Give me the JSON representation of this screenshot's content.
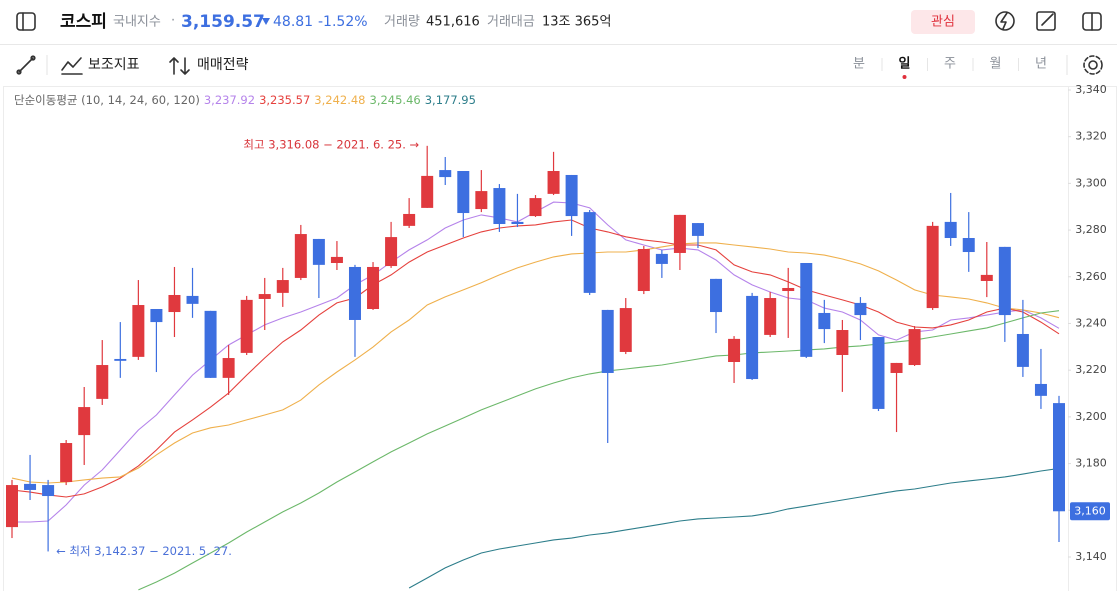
{
  "header": {
    "name": "코스피",
    "kind": "국내지수",
    "dot": "·",
    "price": "3,159.57",
    "change": "48.81",
    "change_pct": "-1.52%",
    "volume_label": "거래량",
    "volume": "451,616",
    "amount_label": "거래대금",
    "amount": "13조 365억",
    "watch": "관심"
  },
  "toolbar": {
    "indicators": "보조지표",
    "strategy": "매매전략",
    "periods": [
      "분",
      "일",
      "주",
      "월",
      "년"
    ],
    "selected_period": 1
  },
  "chart_data": {
    "type": "candlestick",
    "ma_label": "단순이동평균 (10, 14, 24, 60, 120)",
    "up_color": "#e0393e",
    "down_color": "#3d6fe0",
    "ylim": [
      3125,
      3345
    ],
    "yticks": [
      {
        "value": 3140,
        "label": "3,140"
      },
      {
        "value": 3160,
        "label": "3,160"
      },
      {
        "value": 3180,
        "label": "3,180"
      },
      {
        "value": 3200,
        "label": "3,200"
      },
      {
        "value": 3220,
        "label": "3,220"
      },
      {
        "value": 3240,
        "label": "3,240"
      },
      {
        "value": 3260,
        "label": "3,260"
      },
      {
        "value": 3280,
        "label": "3,280"
      },
      {
        "value": 3300,
        "label": "3,300"
      },
      {
        "value": 3320,
        "label": "3,320"
      },
      {
        "value": 3340,
        "label": "3,340"
      }
    ],
    "grid": false,
    "price_marker": {
      "value": 3159.57,
      "label": "3,160",
      "color": "#3d6fe0"
    },
    "annotations": [
      {
        "text": "최고 3,316.08 − 2021. 6. 25. →",
        "value": 3316.08,
        "index": 23,
        "color": "#d8353b",
        "side": "left"
      },
      {
        "text": "← 최저 3,142.37 − 2021. 5. 27.",
        "value": 3142.37,
        "index": 2,
        "color": "#4a70d8",
        "side": "right"
      }
    ],
    "open": [
      3152.8,
      3171.3,
      3170.8,
      3172.1,
      3192.2,
      3207.7,
      3224.8,
      3225.7,
      3246.2,
      3244.9,
      3251.8,
      3245.4,
      3216.7,
      3227.4,
      3250.5,
      3253.1,
      3259.5,
      3276.2,
      3265.9,
      3264.2,
      3246.2,
      3264.6,
      3281.8,
      3289.5,
      3305.7,
      3305.3,
      3289.0,
      3298.0,
      3283.5,
      3286.0,
      3295.5,
      3303.6,
      3287.7,
      3245.8,
      3227.8,
      3253.9,
      3269.8,
      3270.2,
      3283.0,
      3259.1,
      3223.5,
      3251.8,
      3235.1,
      3253.9,
      3265.9,
      3244.5,
      3226.5,
      3248.8,
      3234.2,
      3218.8,
      3222.2,
      3246.6,
      3283.5,
      3276.6,
      3258.2,
      3272.8,
      3235.5,
      3214.1,
      3205.9
    ],
    "high": [
      3173.0,
      3183.7,
      3173.0,
      3190.1,
      3212.8,
      3232.9,
      3240.6,
      3258.6,
      3246.2,
      3264.2,
      3263.8,
      3245.4,
      3230.8,
      3251.8,
      3259.5,
      3263.8,
      3282.2,
      3276.2,
      3275.3,
      3265.1,
      3266.3,
      3283.5,
      3293.7,
      3316.08,
      3311.3,
      3305.3,
      3305.7,
      3299.7,
      3295.5,
      3295.0,
      3313.5,
      3303.6,
      3288.6,
      3245.8,
      3250.9,
      3273.2,
      3271.5,
      3286.5,
      3283.0,
      3259.1,
      3234.6,
      3253.1,
      3253.5,
      3263.8,
      3265.9,
      3250.1,
      3241.5,
      3251.3,
      3234.2,
      3223.1,
      3238.9,
      3283.5,
      3295.9,
      3287.7,
      3274.9,
      3272.8,
      3250.1,
      3229.1,
      3209.0
    ],
    "low": [
      3148.1,
      3164.4,
      3142.37,
      3170.8,
      3179.4,
      3205.1,
      3216.7,
      3224.4,
      3219.2,
      3234.2,
      3242.4,
      3216.7,
      3209.4,
      3226.5,
      3237.2,
      3247.1,
      3258.6,
      3250.9,
      3262.9,
      3225.7,
      3245.8,
      3263.8,
      3280.9,
      3289.5,
      3299.3,
      3277.0,
      3287.7,
      3279.2,
      3281.3,
      3285.6,
      3295.0,
      3277.5,
      3252.2,
      3188.8,
      3226.9,
      3252.6,
      3259.5,
      3262.9,
      3272.3,
      3235.9,
      3214.5,
      3215.8,
      3234.2,
      3233.8,
      3225.2,
      3231.6,
      3210.7,
      3232.9,
      3202.5,
      3193.5,
      3221.8,
      3245.8,
      3273.2,
      3262.1,
      3251.3,
      3232.1,
      3217.1,
      3203.4,
      3146.4
    ],
    "close": [
      3170.8,
      3168.7,
      3166.1,
      3188.8,
      3204.2,
      3222.2,
      3224.0,
      3247.9,
      3240.6,
      3252.2,
      3248.4,
      3216.7,
      3225.2,
      3250.1,
      3252.6,
      3258.6,
      3278.3,
      3265.1,
      3268.5,
      3241.5,
      3264.2,
      3277.0,
      3286.9,
      3303.2,
      3302.7,
      3287.3,
      3296.7,
      3282.6,
      3282.6,
      3293.7,
      3305.3,
      3286.0,
      3253.1,
      3218.8,
      3246.6,
      3271.9,
      3265.5,
      3286.5,
      3277.5,
      3244.9,
      3233.4,
      3216.2,
      3250.9,
      3255.2,
      3225.7,
      3237.6,
      3237.2,
      3243.6,
      3203.4,
      3223.1,
      3237.6,
      3281.8,
      3276.6,
      3270.6,
      3260.8,
      3243.6,
      3221.4,
      3209.0,
      3159.57
    ],
    "series": [
      {
        "legend_label": "3,237.92",
        "color": "#b583ea",
        "values": [
          3155.0,
          3155.0,
          3155.4,
          3162.3,
          3170.8,
          3177.3,
          3185.8,
          3194.4,
          3200.8,
          3209.4,
          3217.9,
          3224.4,
          3230.8,
          3235.1,
          3239.4,
          3242.4,
          3244.9,
          3247.9,
          3250.9,
          3256.5,
          3260.8,
          3266.3,
          3271.5,
          3275.8,
          3280.9,
          3284.3,
          3286.5,
          3285.2,
          3283.5,
          3287.8,
          3292.0,
          3291.6,
          3289.5,
          3282.2,
          3275.8,
          3273.6,
          3271.5,
          3272.3,
          3271.5,
          3267.2,
          3260.8,
          3256.5,
          3253.5,
          3250.9,
          3250.1,
          3246.6,
          3244.9,
          3241.5,
          3235.1,
          3232.9,
          3236.4,
          3237.2,
          3241.5,
          3242.4,
          3243.6,
          3244.9,
          3245.8,
          3242.4,
          3237.92
        ]
      },
      {
        "legend_label": "3,235.57",
        "color": "#e5413d",
        "values": [
          3168.7,
          3167.8,
          3166.6,
          3165.7,
          3167.0,
          3170.0,
          3173.8,
          3179.0,
          3185.8,
          3193.5,
          3198.7,
          3204.2,
          3210.2,
          3217.9,
          3225.2,
          3232.1,
          3237.2,
          3243.6,
          3248.8,
          3250.9,
          3256.5,
          3260.8,
          3266.3,
          3270.6,
          3273.6,
          3276.6,
          3279.2,
          3280.9,
          3281.8,
          3282.2,
          3283.5,
          3284.3,
          3280.9,
          3279.2,
          3277.1,
          3275.8,
          3274.9,
          3273.6,
          3273.6,
          3271.5,
          3265.1,
          3262.1,
          3260.8,
          3257.8,
          3254.4,
          3252.2,
          3250.1,
          3247.9,
          3244.9,
          3240.6,
          3238.5,
          3238.1,
          3239.4,
          3241.5,
          3244.9,
          3246.6,
          3244.9,
          3240.6,
          3235.57
        ]
      },
      {
        "legend_label": "3,242.48",
        "color": "#efb04c",
        "values": [
          3173.8,
          3172.1,
          3171.7,
          3172.1,
          3173.0,
          3173.8,
          3174.3,
          3178.1,
          3183.7,
          3188.8,
          3193.1,
          3195.3,
          3196.5,
          3198.7,
          3200.8,
          3203.0,
          3207.2,
          3213.7,
          3219.2,
          3224.4,
          3229.9,
          3236.4,
          3241.5,
          3247.9,
          3251.4,
          3254.4,
          3257.4,
          3260.8,
          3263.8,
          3266.3,
          3268.5,
          3269.8,
          3270.2,
          3270.6,
          3270.6,
          3271.5,
          3272.8,
          3274.1,
          3274.5,
          3274.5,
          3273.6,
          3272.8,
          3271.9,
          3270.6,
          3270.2,
          3269.3,
          3267.6,
          3265.5,
          3262.5,
          3258.6,
          3254.4,
          3252.2,
          3251.4,
          3250.5,
          3248.8,
          3246.6,
          3245.8,
          3244.5,
          3242.48
        ]
      },
      {
        "legend_label": "3,245.46",
        "color": "#6cb86a",
        "values": [
          null,
          null,
          null,
          null,
          null,
          null,
          null,
          3125.9,
          3129.3,
          3133.1,
          3137.4,
          3141.7,
          3146.0,
          3150.7,
          3155.0,
          3159.3,
          3163.1,
          3167.4,
          3172.1,
          3176.4,
          3180.7,
          3185.0,
          3188.8,
          3192.7,
          3196.1,
          3199.5,
          3203.0,
          3206.0,
          3209.0,
          3212.0,
          3214.5,
          3216.7,
          3218.4,
          3219.7,
          3220.5,
          3221.4,
          3222.2,
          3223.5,
          3224.8,
          3226.1,
          3226.5,
          3227.4,
          3227.8,
          3228.2,
          3228.7,
          3229.1,
          3229.9,
          3230.4,
          3231.2,
          3232.1,
          3232.9,
          3234.2,
          3235.5,
          3236.8,
          3238.1,
          3240.2,
          3242.4,
          3244.5,
          3245.46
        ]
      },
      {
        "legend_label": "3,177.95",
        "color": "#2c7d8a",
        "values": [
          null,
          null,
          null,
          null,
          null,
          null,
          null,
          null,
          null,
          null,
          null,
          null,
          null,
          null,
          null,
          null,
          null,
          null,
          null,
          null,
          null,
          null,
          3126.7,
          3131.0,
          3135.3,
          3138.7,
          3141.7,
          3143.4,
          3144.7,
          3146.0,
          3147.3,
          3148.1,
          3149.4,
          3150.3,
          3151.6,
          3152.8,
          3154.1,
          3155.4,
          3156.3,
          3156.7,
          3157.1,
          3157.6,
          3158.8,
          3160.6,
          3161.8,
          3163.1,
          3164.4,
          3165.7,
          3167.0,
          3168.3,
          3169.1,
          3170.4,
          3171.7,
          3172.6,
          3173.4,
          3174.3,
          3175.5,
          3176.8,
          3177.95
        ]
      }
    ]
  }
}
